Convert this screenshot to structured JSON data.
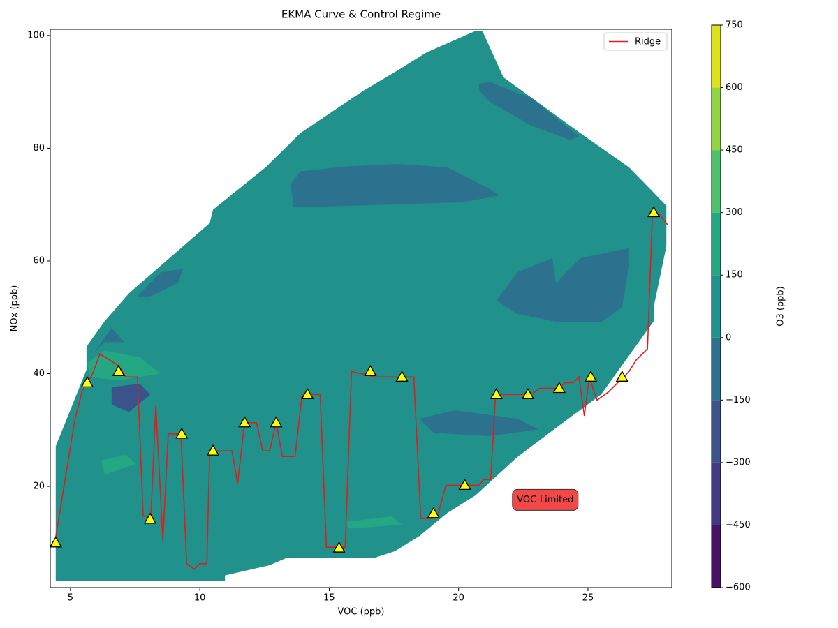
{
  "chart_data": {
    "type": "contour",
    "title": "EKMA Curve & Control Regime",
    "x_label": "VOC (ppb)",
    "y_label": "NOx (ppb)",
    "colorbar_label": "O3 (ppb)",
    "xlim": [
      4.22,
      28.24
    ],
    "ylim": [
      2.05,
      101.1
    ],
    "xticks": [
      5,
      10,
      15,
      20,
      25
    ],
    "yticks": [
      20,
      40,
      60,
      80,
      100
    ],
    "levels": [
      {
        "value": -600,
        "label": "−600"
      },
      {
        "value": -450,
        "label": "−450"
      },
      {
        "value": -300,
        "label": "−300"
      },
      {
        "value": -150,
        "label": "−150"
      },
      0,
      150,
      300,
      450,
      600,
      750
    ],
    "colors": [
      "#471365",
      "#443983",
      "#3b528b",
      "#2c728e",
      "#21918c",
      "#23a883",
      "#4cc26c",
      "#91d543",
      "#dde318"
    ],
    "contours": [
      {
        "range": [
          0,
          150
        ],
        "points": [
          [
            4.43,
            3.2
          ],
          [
            10.97,
            3.2
          ],
          [
            10.97,
            4.2
          ],
          [
            12.68,
            6.0
          ],
          [
            13.35,
            7.3
          ],
          [
            16.73,
            7.3
          ],
          [
            17.54,
            8.5
          ],
          [
            18.49,
            11.2
          ],
          [
            19.57,
            15.3
          ],
          [
            20.65,
            18.4
          ],
          [
            22.27,
            25.2
          ],
          [
            23.89,
            30.8
          ],
          [
            25.51,
            36.3
          ],
          [
            27.54,
            49.3
          ],
          [
            27.54,
            51.8
          ],
          [
            28.03,
            62.6
          ],
          [
            28.03,
            69.8
          ],
          [
            26.59,
            76.6
          ],
          [
            24.7,
            82.7
          ],
          [
            21.73,
            92.6
          ],
          [
            20.92,
            100.8
          ],
          [
            20.65,
            100.8
          ],
          [
            18.76,
            97.0
          ],
          [
            17.68,
            93.9
          ],
          [
            16.32,
            90.2
          ],
          [
            13.89,
            82.7
          ],
          [
            12.54,
            76.6
          ],
          [
            10.51,
            69.1
          ],
          [
            10.38,
            66.7
          ],
          [
            7.27,
            54.3
          ],
          [
            6.32,
            49.3
          ],
          [
            5.62,
            44.8
          ],
          [
            5.62,
            40.7
          ],
          [
            4.43,
            27.1
          ]
        ]
      },
      {
        "range": [
          -150,
          0
        ],
        "points": [
          [
            13.49,
            73.5
          ],
          [
            13.89,
            75.9
          ],
          [
            15.78,
            76.8
          ],
          [
            17.68,
            77.2
          ],
          [
            19.57,
            76.6
          ],
          [
            21.19,
            72.8
          ],
          [
            21.59,
            71.6
          ],
          [
            20.11,
            70.4
          ],
          [
            17.41,
            70.0
          ],
          [
            13.62,
            69.5
          ],
          [
            13.57,
            71.6
          ]
        ]
      },
      {
        "range": [
          -150,
          0
        ],
        "points": [
          [
            20.78,
            91.4
          ],
          [
            21.19,
            91.8
          ],
          [
            22.81,
            88.9
          ],
          [
            24.65,
            82.1
          ],
          [
            24.3,
            81.5
          ],
          [
            22.81,
            84.0
          ],
          [
            21.19,
            88.3
          ],
          [
            20.81,
            90.2
          ]
        ]
      },
      {
        "range": [
          -150,
          0
        ],
        "points": [
          [
            21.46,
            53.0
          ],
          [
            22.27,
            58.0
          ],
          [
            23.62,
            60.5
          ],
          [
            23.76,
            56.1
          ],
          [
            24.7,
            60.5
          ],
          [
            26.59,
            62.3
          ],
          [
            26.59,
            59.2
          ],
          [
            26.32,
            51.8
          ],
          [
            25.51,
            49.1
          ],
          [
            23.89,
            49.1
          ],
          [
            22.27,
            50.6
          ]
        ]
      },
      {
        "range": [
          -150,
          0
        ],
        "points": [
          [
            7.57,
            53.7
          ],
          [
            8.49,
            58.0
          ],
          [
            9.35,
            58.6
          ],
          [
            9.16,
            56.1
          ],
          [
            8.08,
            53.7
          ]
        ]
      },
      {
        "range": [
          -150,
          0
        ],
        "points": [
          [
            18.49,
            32.0
          ],
          [
            19.84,
            33.5
          ],
          [
            22.27,
            32.0
          ],
          [
            23.08,
            30.1
          ],
          [
            21.19,
            28.9
          ],
          [
            19.03,
            29.5
          ]
        ]
      },
      {
        "range": [
          -150,
          0
        ],
        "points": [
          [
            5.92,
            43.8
          ],
          [
            6.59,
            48.1
          ],
          [
            7.08,
            45.6
          ],
          [
            6.32,
            45.6
          ]
        ]
      },
      {
        "range": [
          150,
          300
        ],
        "points": [
          [
            5.65,
            41.9
          ],
          [
            6.32,
            44.1
          ],
          [
            7.68,
            42.9
          ],
          [
            8.49,
            40.0
          ],
          [
            6.86,
            38.8
          ],
          [
            5.78,
            39.4
          ]
        ]
      },
      {
        "range": [
          -300,
          -150
        ],
        "points": [
          [
            6.59,
            37.6
          ],
          [
            7.68,
            38.2
          ],
          [
            8.08,
            36.3
          ],
          [
            7.27,
            33.2
          ],
          [
            6.59,
            34.5
          ]
        ]
      },
      {
        "range": [
          150,
          300
        ],
        "points": [
          [
            6.19,
            24.6
          ],
          [
            7.14,
            25.6
          ],
          [
            7.54,
            24.0
          ],
          [
            6.32,
            22.1
          ]
        ]
      },
      {
        "range": [
          150,
          300
        ],
        "points": [
          [
            15.65,
            13.7
          ],
          [
            17.41,
            14.7
          ],
          [
            17.81,
            13.2
          ],
          [
            15.78,
            12.5
          ]
        ]
      }
    ],
    "series": [
      {
        "name": "Ridge",
        "color": "#e41a1c",
        "x": [
          4.43,
          5.16,
          5.46,
          5.84,
          6.14,
          6.86,
          7.14,
          7.59,
          7.81,
          8.11,
          8.3,
          8.57,
          8.78,
          9.27,
          9.49,
          9.78,
          10.0,
          10.27,
          10.38,
          11.24,
          11.46,
          11.73,
          12.19,
          12.43,
          12.7,
          12.95,
          13.19,
          13.68,
          13.95,
          14.65,
          14.89,
          15.62,
          15.86,
          16.76,
          18.27,
          18.54,
          19.03,
          19.22,
          19.51,
          20.78,
          20.97,
          21.24,
          21.43,
          22.81,
          23.14,
          23.89,
          24.11,
          24.43,
          24.65,
          24.86,
          25.05,
          25.35,
          25.78,
          26.59,
          26.86,
          27.3,
          27.49,
          27.76,
          28.08
        ],
        "values": [
          10.97,
          31.6,
          37.0,
          39.8,
          43.5,
          41.4,
          39.4,
          39.4,
          14.7,
          14.7,
          34.4,
          10.3,
          29.3,
          29.3,
          6.3,
          5.3,
          6.3,
          6.3,
          26.3,
          26.3,
          20.5,
          31.3,
          31.3,
          26.3,
          26.3,
          31.3,
          25.3,
          25.3,
          36.3,
          36.3,
          9.2,
          9.2,
          40.4,
          39.4,
          39.4,
          14.3,
          14.3,
          15.3,
          20.2,
          20.2,
          21.2,
          21.2,
          36.3,
          36.3,
          37.4,
          37.4,
          38.4,
          38.4,
          39.4,
          32.5,
          39.4,
          35.3,
          36.7,
          40.4,
          42.4,
          44.4,
          68.3,
          68.3,
          66.4
        ]
      }
    ],
    "markers": {
      "color": "#ffff00",
      "x": [
        4.43,
        5.65,
        6.86,
        8.08,
        9.3,
        10.51,
        11.73,
        12.95,
        14.16,
        15.38,
        16.59,
        17.81,
        19.03,
        20.24,
        21.46,
        22.68,
        23.89,
        25.11,
        26.32,
        27.54
      ],
      "values": [
        10.0,
        38.4,
        40.4,
        14.2,
        29.3,
        26.3,
        31.3,
        31.3,
        36.3,
        9.1,
        40.4,
        39.4,
        15.2,
        20.2,
        36.3,
        36.3,
        37.4,
        39.4,
        39.4,
        68.6
      ]
    },
    "annotation": {
      "text": "VOC-Limited",
      "x": 23.35,
      "y": 17.6
    },
    "legend": "upper right"
  }
}
